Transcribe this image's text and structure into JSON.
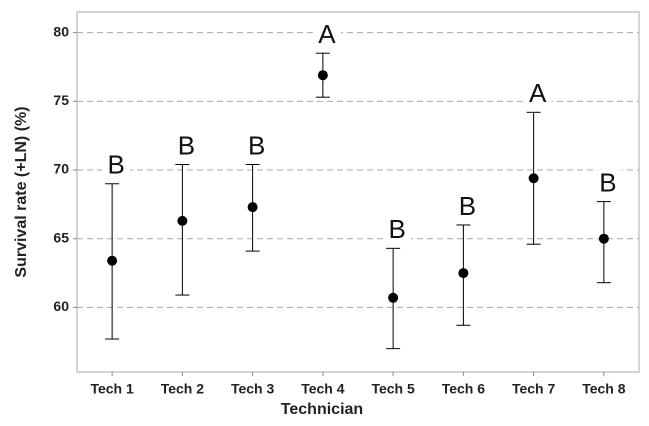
{
  "chart_data": {
    "type": "errorbar",
    "x_label": "Technician",
    "y_label": "Survival rate (+LN) (%)",
    "categories": [
      "Tech 1",
      "Tech 2",
      "Tech 3",
      "Tech 4",
      "Tech 5",
      "Tech 6",
      "Tech 7",
      "Tech 8"
    ],
    "values": [
      63.4,
      66.3,
      67.3,
      76.9,
      60.7,
      62.5,
      69.4,
      65.0
    ],
    "lower": [
      57.7,
      60.9,
      64.1,
      75.3,
      57.0,
      58.7,
      64.6,
      61.8
    ],
    "upper": [
      69.0,
      70.4,
      70.4,
      78.5,
      64.3,
      66.0,
      74.2,
      67.7
    ],
    "annotations": [
      "B",
      "B",
      "B",
      "A",
      "B",
      "B",
      "A",
      "B"
    ],
    "color": "#000000",
    "ylim": [
      55.3,
      81.5
    ],
    "yticks": [
      60,
      65,
      70,
      75,
      80
    ],
    "grid": true
  }
}
